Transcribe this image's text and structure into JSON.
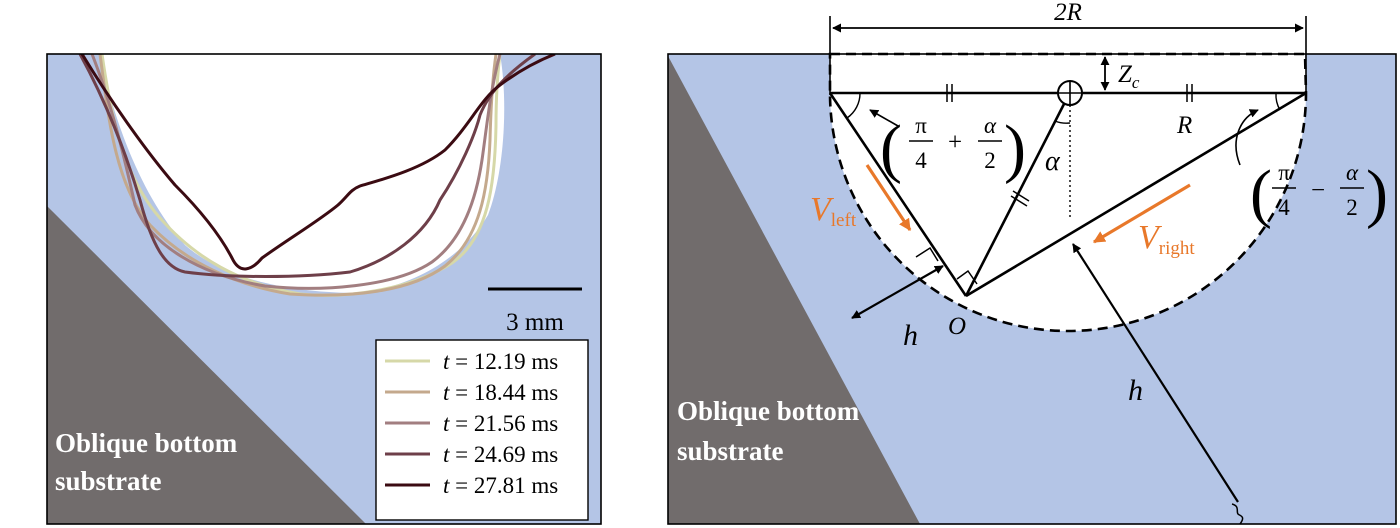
{
  "left_panel": {
    "substrate_label_line1": "Oblique bottom",
    "substrate_label_line2": "substrate",
    "scale_bar_label": "3 mm",
    "legend": [
      {
        "var": "t",
        "rest": " = 12.19 ms",
        "color": "#d6d8a8"
      },
      {
        "var": "t",
        "rest": " = 18.44 ms",
        "color": "#c4a98d"
      },
      {
        "var": "t",
        "rest": " = 21.56 ms",
        "color": "#a27e80"
      },
      {
        "var": "t",
        "rest": " = 24.69 ms",
        "color": "#6e3f49"
      },
      {
        "var": "t",
        "rest": " = 27.81 ms",
        "color": "#3b0b12"
      }
    ]
  },
  "right_panel": {
    "substrate_label_line1": "Oblique bottom",
    "substrate_label_line2": "substrate",
    "width_label": "2R",
    "zc_label_main": "Z",
    "zc_label_sub": "c",
    "r_label": "R",
    "alpha_label": "α",
    "origin_label": "O",
    "h_label": "h",
    "v_left_main": "V",
    "v_left_sub": "left",
    "v_right_main": "V",
    "v_right_sub": "right",
    "angle_left_num1": "π",
    "angle_left_den1": "4",
    "angle_left_op": "+",
    "angle_left_num2": "α",
    "angle_left_den2": "2",
    "angle_right_num1": "π",
    "angle_right_den1": "4",
    "angle_right_op": "−",
    "angle_right_num2": "α",
    "angle_right_den2": "2"
  },
  "colors": {
    "liquid": "#b4c5e6",
    "substrate": "#716c6c",
    "velocity_arrow": "#e8782a",
    "line": "#000000"
  }
}
